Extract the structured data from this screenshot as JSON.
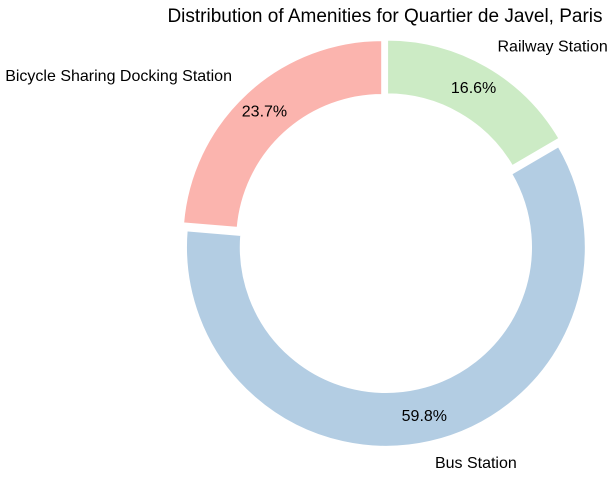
{
  "chart_data": {
    "type": "pie",
    "style": "donut",
    "title": "Distribution of Amenities for Quartier de Javel, Paris",
    "categories": [
      "Railway Station",
      "Bus Station",
      "Bicycle Sharing Docking Station"
    ],
    "values": [
      16.6,
      59.8,
      23.7
    ],
    "percent_labels": [
      "16.6%",
      "59.8%",
      "23.7%"
    ],
    "colors": [
      "#ccebc5",
      "#b3cde3",
      "#fbb4ae"
    ],
    "start_angle_deg": 90,
    "direction": "clockwise",
    "legend": "none"
  }
}
